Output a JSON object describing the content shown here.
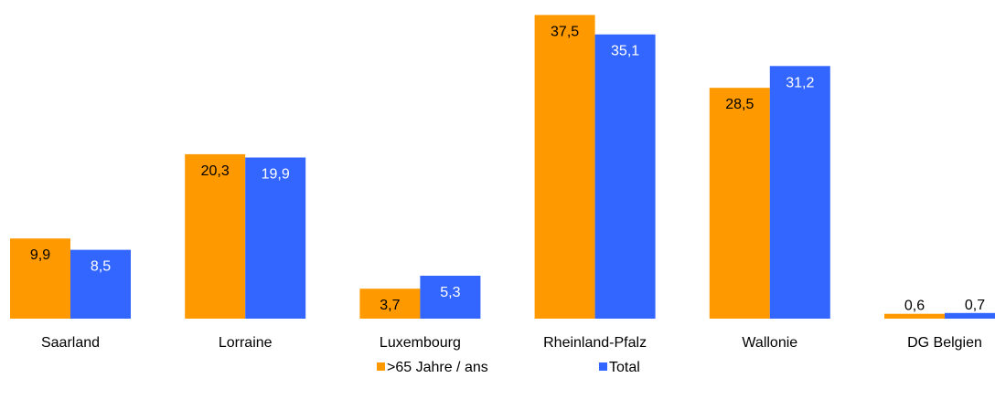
{
  "chart_data": {
    "type": "bar",
    "title": "",
    "xlabel": "",
    "ylabel": "",
    "ylim": [
      0,
      40
    ],
    "grid": false,
    "legend_position": "bottom",
    "categories": [
      "Saarland",
      "Lorraine",
      "Luxembourg",
      "Rheinland-Pfalz",
      "Wallonie",
      "DG Belgien"
    ],
    "series": [
      {
        "name": ">65 Jahre / ans",
        "color": "#FF9900",
        "label_color": "#000000",
        "values": [
          9.9,
          20.3,
          3.7,
          37.5,
          28.5,
          0.6
        ],
        "value_labels": [
          "9,9",
          "20,3",
          "3,7",
          "37,5",
          "28,5",
          "0,6"
        ]
      },
      {
        "name": "Total",
        "color": "#3366FF",
        "label_color": "#FFFFFF",
        "values": [
          8.5,
          19.9,
          5.3,
          35.1,
          31.2,
          0.7
        ],
        "value_labels": [
          "8,5",
          "19,9",
          "5,3",
          "35,1",
          "31,2",
          "0,7"
        ]
      }
    ]
  }
}
